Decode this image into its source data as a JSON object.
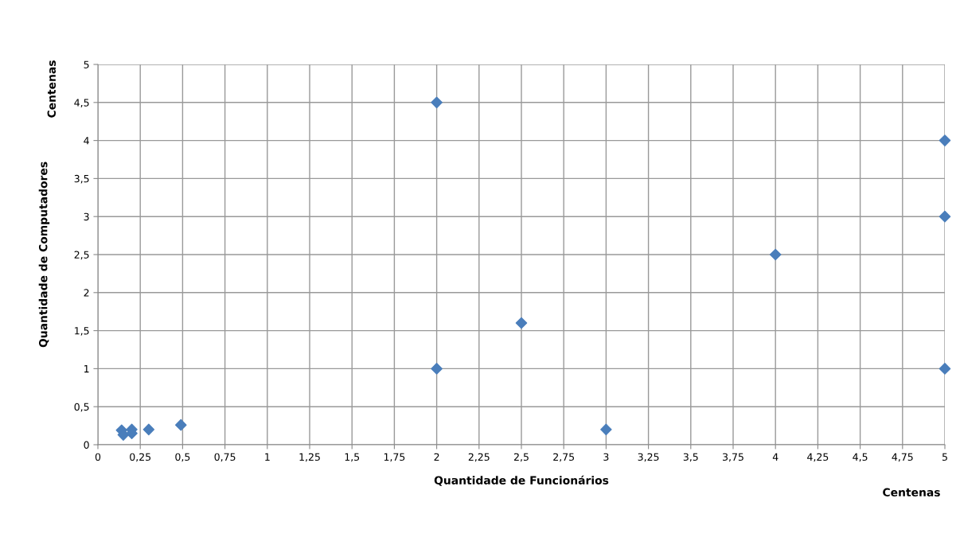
{
  "chart_data": {
    "type": "scatter",
    "xlabel": "Quantidade de Funcionários",
    "ylabel": "Quantidade de Computadores",
    "annotations": [
      "Centenas",
      "Centenas"
    ],
    "series": [
      {
        "color": "#4a7ebb",
        "x": [
          0.14,
          0.15,
          0.2,
          0.2,
          0.3,
          0.49,
          2,
          2,
          2.5,
          3,
          4,
          5,
          5,
          5
        ],
        "values": [
          0.19,
          0.13,
          0.2,
          0.15,
          0.2,
          0.26,
          4.5,
          1,
          1.6,
          0.2,
          2.5,
          4,
          3,
          1
        ]
      }
    ],
    "marker": "diamond",
    "grid": true,
    "xlim": [
      0,
      5
    ],
    "ylim": [
      0,
      5
    ],
    "xticks": [
      0,
      {
        "value": 0.25,
        "label": "0,25"
      },
      {
        "value": 0.5,
        "label": "0,5"
      },
      {
        "value": 0.75,
        "label": "0,75"
      },
      1,
      {
        "value": 1.25,
        "label": "1,25"
      },
      {
        "value": 1.5,
        "label": "1,5"
      },
      {
        "value": 1.75,
        "label": "1,75"
      },
      2,
      {
        "value": 2.25,
        "label": "2,25"
      },
      {
        "value": 2.5,
        "label": "2,5"
      },
      {
        "value": 2.75,
        "label": "2,75"
      },
      3,
      {
        "value": 3.25,
        "label": "3,25"
      },
      {
        "value": 3.5,
        "label": "3,5"
      },
      {
        "value": 3.75,
        "label": "3,75"
      },
      4,
      {
        "value": 4.25,
        "label": "4,25"
      },
      {
        "value": 4.5,
        "label": "4,5"
      },
      {
        "value": 4.75,
        "label": "4,75"
      },
      5
    ],
    "yticks": [
      0,
      {
        "value": 0.5,
        "label": "0,5"
      },
      1,
      {
        "value": 1.5,
        "label": "1,5"
      },
      2,
      {
        "value": 2.5,
        "label": "2,5"
      },
      3,
      {
        "value": 3.5,
        "label": "3,5"
      },
      4,
      {
        "value": 4.5,
        "label": "4,5"
      },
      5
    ]
  }
}
